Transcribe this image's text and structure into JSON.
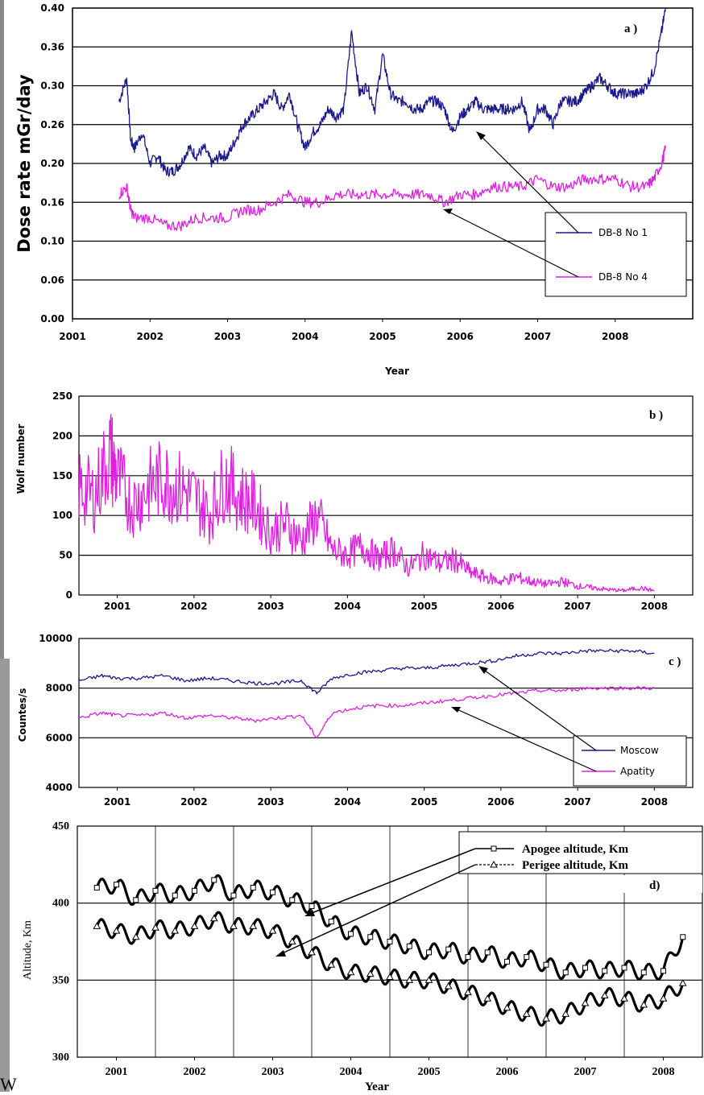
{
  "chart_data": [
    {
      "id": "a",
      "type": "line",
      "panel_label": "a )",
      "xlabel": "Year",
      "ylabel": "Dose rate mGr/day",
      "xlim": [
        2001,
        2009
      ],
      "ylim": [
        0.0,
        0.4
      ],
      "x_ticks": [
        "2001",
        "2002",
        "2003",
        "2004",
        "2005",
        "2006",
        "2007",
        "2008"
      ],
      "y_ticks": [
        "0.00",
        "0.06",
        "0.10",
        "0.16",
        "0.20",
        "0.26",
        "0.30",
        "0.36",
        "0.40"
      ],
      "grid": "horizontal",
      "legend_position": "bottom-right",
      "series": [
        {
          "name": "DB-8  No 1",
          "color": "#1a1a8c",
          "x": [
            2001.6,
            2001.7,
            2001.75,
            2001.8,
            2001.9,
            2002.0,
            2002.1,
            2002.2,
            2002.3,
            2002.4,
            2002.5,
            2002.6,
            2002.7,
            2002.8,
            2002.9,
            2003.0,
            2003.1,
            2003.2,
            2003.3,
            2003.4,
            2003.5,
            2003.6,
            2003.7,
            2003.8,
            2003.9,
            2004.0,
            2004.1,
            2004.2,
            2004.3,
            2004.4,
            2004.5,
            2004.6,
            2004.7,
            2004.8,
            2004.9,
            2005.0,
            2005.1,
            2005.2,
            2005.3,
            2005.4,
            2005.5,
            2005.6,
            2005.7,
            2005.8,
            2005.9,
            2006.0,
            2006.1,
            2006.2,
            2006.3,
            2006.4,
            2006.5,
            2006.6,
            2006.7,
            2006.8,
            2006.9,
            2007.0,
            2007.1,
            2007.2,
            2007.3,
            2007.4,
            2007.5,
            2007.6,
            2007.7,
            2007.8,
            2007.9,
            2008.0,
            2008.1,
            2008.2,
            2008.3,
            2008.4,
            2008.5,
            2008.6,
            2008.65
          ],
          "values": [
            0.28,
            0.31,
            0.23,
            0.22,
            0.24,
            0.2,
            0.21,
            0.19,
            0.19,
            0.2,
            0.22,
            0.21,
            0.22,
            0.2,
            0.21,
            0.21,
            0.23,
            0.25,
            0.26,
            0.27,
            0.28,
            0.29,
            0.27,
            0.29,
            0.25,
            0.22,
            0.24,
            0.25,
            0.27,
            0.26,
            0.27,
            0.37,
            0.29,
            0.3,
            0.27,
            0.34,
            0.29,
            0.28,
            0.28,
            0.27,
            0.27,
            0.28,
            0.28,
            0.27,
            0.24,
            0.26,
            0.27,
            0.28,
            0.27,
            0.27,
            0.27,
            0.27,
            0.27,
            0.28,
            0.24,
            0.27,
            0.27,
            0.25,
            0.28,
            0.28,
            0.28,
            0.29,
            0.3,
            0.31,
            0.3,
            0.29,
            0.29,
            0.29,
            0.29,
            0.3,
            0.32,
            0.37,
            0.4
          ]
        },
        {
          "name": "DB-8  No 4",
          "color": "#e020e0",
          "x": [
            2001.6,
            2001.7,
            2001.75,
            2001.8,
            2002.0,
            2002.2,
            2002.4,
            2002.6,
            2002.8,
            2003.0,
            2003.2,
            2003.4,
            2003.6,
            2003.8,
            2004.0,
            2004.2,
            2004.4,
            2004.6,
            2004.8,
            2005.0,
            2005.2,
            2005.4,
            2005.6,
            2005.8,
            2006.0,
            2006.2,
            2006.4,
            2006.6,
            2006.8,
            2007.0,
            2007.2,
            2007.4,
            2007.6,
            2007.8,
            2008.0,
            2008.2,
            2008.4,
            2008.5,
            2008.6,
            2008.65
          ],
          "values": [
            0.16,
            0.17,
            0.14,
            0.13,
            0.13,
            0.12,
            0.12,
            0.13,
            0.13,
            0.13,
            0.14,
            0.14,
            0.15,
            0.16,
            0.15,
            0.15,
            0.16,
            0.16,
            0.16,
            0.16,
            0.16,
            0.16,
            0.16,
            0.15,
            0.16,
            0.16,
            0.17,
            0.17,
            0.17,
            0.18,
            0.17,
            0.17,
            0.18,
            0.18,
            0.18,
            0.17,
            0.17,
            0.18,
            0.2,
            0.22
          ]
        }
      ]
    },
    {
      "id": "b",
      "type": "line",
      "panel_label": "b )",
      "xlabel": "",
      "ylabel": "Wolf number",
      "xlim": [
        2000.5,
        2008.5
      ],
      "ylim": [
        0,
        250
      ],
      "x_ticks": [
        "2001",
        "2002",
        "2003",
        "2004",
        "2005",
        "2006",
        "2007",
        "2008"
      ],
      "y_ticks": [
        "0",
        "50",
        "100",
        "150",
        "200",
        "250"
      ],
      "grid": "horizontal",
      "series": [
        {
          "name": "",
          "color": "#e020e0",
          "x": [
            2000.5,
            2000.7,
            2000.9,
            2001.0,
            2001.2,
            2001.4,
            2001.6,
            2001.8,
            2002.0,
            2002.2,
            2002.4,
            2002.6,
            2002.8,
            2003.0,
            2003.2,
            2003.4,
            2003.6,
            2003.8,
            2004.0,
            2004.2,
            2004.4,
            2004.6,
            2004.8,
            2005.0,
            2005.2,
            2005.4,
            2005.6,
            2005.8,
            2006.0,
            2006.2,
            2006.4,
            2006.6,
            2006.8,
            2007.0,
            2007.2,
            2007.4,
            2007.6,
            2007.8,
            2008.0
          ],
          "values": [
            120,
            110,
            160,
            130,
            100,
            120,
            130,
            120,
            110,
            90,
            130,
            110,
            100,
            70,
            80,
            60,
            90,
            50,
            45,
            55,
            40,
            50,
            30,
            45,
            35,
            40,
            25,
            20,
            15,
            20,
            15,
            12,
            15,
            10,
            8,
            6,
            5,
            8,
            5
          ]
        }
      ]
    },
    {
      "id": "c",
      "type": "line",
      "panel_label": "c )",
      "xlabel": "",
      "ylabel": "Countes/s",
      "xlim": [
        2000.5,
        2008.5
      ],
      "ylim": [
        4000,
        10000
      ],
      "x_ticks": [
        "2001",
        "2002",
        "2003",
        "2004",
        "2005",
        "2006",
        "2007",
        "2008"
      ],
      "y_ticks": [
        "4000",
        "6000",
        "8000",
        "10000"
      ],
      "grid": "horizontal",
      "legend_position": "bottom-right",
      "series": [
        {
          "name": "Moscow",
          "color": "#1a1a8c",
          "x": [
            2000.5,
            2000.8,
            2001.0,
            2001.3,
            2001.6,
            2001.9,
            2002.2,
            2002.5,
            2002.8,
            2003.1,
            2003.4,
            2003.6,
            2003.8,
            2004.1,
            2004.4,
            2004.7,
            2005.0,
            2005.3,
            2005.6,
            2005.9,
            2006.2,
            2006.5,
            2006.8,
            2007.1,
            2007.4,
            2007.7,
            2008.0
          ],
          "values": [
            8300,
            8500,
            8400,
            8400,
            8500,
            8300,
            8400,
            8300,
            8200,
            8200,
            8300,
            7800,
            8400,
            8600,
            8700,
            8800,
            8800,
            8900,
            9000,
            9100,
            9300,
            9400,
            9400,
            9500,
            9500,
            9500,
            9400
          ]
        },
        {
          "name": "Apatity",
          "color": "#e020e0",
          "x": [
            2000.5,
            2000.8,
            2001.0,
            2001.3,
            2001.6,
            2001.9,
            2002.2,
            2002.5,
            2002.8,
            2003.1,
            2003.4,
            2003.6,
            2003.8,
            2004.1,
            2004.4,
            2004.7,
            2005.0,
            2005.3,
            2005.6,
            2005.9,
            2006.2,
            2006.5,
            2006.8,
            2007.1,
            2007.4,
            2007.7,
            2008.0
          ],
          "values": [
            6800,
            7000,
            6900,
            6900,
            7000,
            6800,
            6900,
            6800,
            6700,
            6800,
            6900,
            6000,
            7000,
            7200,
            7300,
            7300,
            7400,
            7500,
            7600,
            7700,
            7800,
            7900,
            7900,
            8000,
            8000,
            8000,
            8000
          ]
        }
      ]
    },
    {
      "id": "d",
      "type": "line",
      "panel_label": "d)",
      "xlabel": "Year",
      "ylabel": "Altitude, Km",
      "xlim": [
        2000.5,
        2008.5
      ],
      "ylim": [
        300,
        450
      ],
      "x_ticks": [
        "2001",
        "2002",
        "2003",
        "2004",
        "2005",
        "2006",
        "2007",
        "2008"
      ],
      "y_ticks": [
        "300",
        "350",
        "400",
        "450"
      ],
      "grid": "both",
      "legend_position": "top-right",
      "series": [
        {
          "name": "Apogee altitude, Km",
          "color": "#000000",
          "marker": "square",
          "x": [
            2000.75,
            2001.0,
            2001.25,
            2001.5,
            2001.75,
            2002.0,
            2002.25,
            2002.5,
            2002.75,
            2003.0,
            2003.25,
            2003.5,
            2003.75,
            2004.0,
            2004.25,
            2004.5,
            2004.75,
            2005.0,
            2005.25,
            2005.5,
            2005.75,
            2006.0,
            2006.25,
            2006.5,
            2006.75,
            2007.0,
            2007.25,
            2007.5,
            2007.75,
            2008.0,
            2008.25
          ],
          "values": [
            410,
            412,
            402,
            408,
            405,
            408,
            415,
            405,
            410,
            407,
            402,
            398,
            388,
            380,
            378,
            375,
            372,
            368,
            370,
            365,
            368,
            362,
            365,
            360,
            355,
            358,
            356,
            358,
            355,
            356,
            378
          ]
        },
        {
          "name": "Perigee altitude, Km",
          "color": "#000000",
          "marker": "triangle",
          "x": [
            2000.75,
            2001.0,
            2001.25,
            2001.5,
            2001.75,
            2002.0,
            2002.25,
            2002.5,
            2002.75,
            2003.0,
            2003.25,
            2003.5,
            2003.75,
            2004.0,
            2004.25,
            2004.5,
            2004.75,
            2005.0,
            2005.25,
            2005.5,
            2005.75,
            2006.0,
            2006.25,
            2006.5,
            2006.75,
            2007.0,
            2007.25,
            2007.5,
            2007.75,
            2008.0,
            2008.25
          ],
          "values": [
            385,
            382,
            378,
            384,
            382,
            385,
            390,
            385,
            385,
            382,
            375,
            368,
            360,
            355,
            354,
            352,
            350,
            350,
            346,
            342,
            338,
            332,
            328,
            325,
            328,
            335,
            340,
            338,
            334,
            338,
            348
          ]
        }
      ]
    }
  ],
  "stray_text": "W"
}
